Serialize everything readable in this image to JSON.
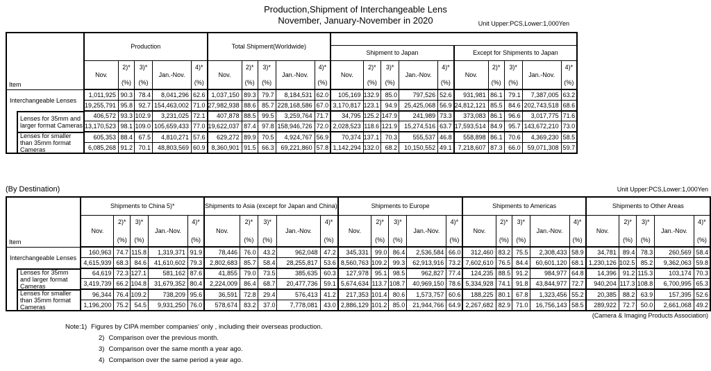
{
  "title": {
    "line1": "Production,Shipment of Interchangeable Lens",
    "line2": "November, January-November in 2020"
  },
  "unit_note": "Unit Upper:PCS,Lower:1,000Yen",
  "item_header": "Item",
  "col_headers": {
    "nov": "Nov.",
    "c2": "2)*",
    "c3": "3)*",
    "jan_nov": "Jan.-Nov.",
    "c4": "4)*",
    "pct": "(%)"
  },
  "table1": {
    "groups": [
      "Production",
      "Total Shipment(Worldwide)",
      "Shipment to Japan",
      "Except for Shipments to Japan"
    ],
    "rows": [
      {
        "label": "Interchangeable Lenses",
        "indent": false,
        "pcs": [
          "1,011,925",
          "90.3",
          "78.4",
          "8,041,296",
          "62.6",
          "1,037,150",
          "89.3",
          "79.7",
          "8,184,531",
          "62.0",
          "105,169",
          "132.9",
          "85.0",
          "797,526",
          "52.6",
          "931,981",
          "86.1",
          "79.1",
          "7,387,005",
          "63.2"
        ],
        "yen": [
          "19,255,791",
          "95.8",
          "92.7",
          "154,463,002",
          "71.0",
          "27,982,938",
          "88.6",
          "85.7",
          "228,168,586",
          "67.0",
          "3,170,817",
          "123.1",
          "94.9",
          "25,425,068",
          "56.9",
          "24,812,121",
          "85.5",
          "84.6",
          "202,743,518",
          "68.6"
        ]
      },
      {
        "label": "Lenses for 35mm and larger format Cameras",
        "indent": true,
        "pcs": [
          "406,572",
          "93.3",
          "102.9",
          "3,231,025",
          "72.1",
          "407,878",
          "88.5",
          "99.5",
          "3,259,764",
          "71.7",
          "34,795",
          "125.2",
          "147.9",
          "241,989",
          "73.3",
          "373,083",
          "86.1",
          "96.6",
          "3,017,775",
          "71.6"
        ],
        "yen": [
          "13,170,523",
          "98.1",
          "109.0",
          "105,659,433",
          "77.0",
          "19,622,037",
          "87.4",
          "97.8",
          "158,946,726",
          "72.0",
          "2,028,523",
          "118.6",
          "121.9",
          "15,274,516",
          "63.7",
          "17,593,514",
          "84.9",
          "95.7",
          "143,672,210",
          "73.0"
        ]
      },
      {
        "label": "Lenses for smaller than 35mm format Cameras",
        "indent": true,
        "pcs": [
          "605,353",
          "88.4",
          "67.5",
          "4,810,271",
          "57.6",
          "629,272",
          "89.9",
          "70.5",
          "4,924,767",
          "56.9",
          "70,374",
          "137.1",
          "70.3",
          "555,537",
          "46.8",
          "558,898",
          "86.1",
          "70.6",
          "4,369,230",
          "58.5"
        ],
        "yen": [
          "6,085,268",
          "91.2",
          "70.1",
          "48,803,569",
          "60.9",
          "8,360,901",
          "91.5",
          "66.3",
          "69,221,860",
          "57.8",
          "1,142,294",
          "132.0",
          "68.2",
          "10,150,552",
          "49.1",
          "7,218,607",
          "87.3",
          "66.0",
          "59,071,308",
          "59.7"
        ]
      }
    ]
  },
  "table2": {
    "section_label": "(By Destination)",
    "groups": [
      "Shipments to China  5)*",
      "Shipments to Asia (except for Japan and China)",
      "Shipments to Europe",
      "Shipments to Americas",
      "Shipments to Other Areas"
    ],
    "rows": [
      {
        "label": "Interchangeable Lenses",
        "indent": false,
        "pcs": [
          "160,963",
          "74.7",
          "115.8",
          "1,319,371",
          "91.9",
          "78,446",
          "76.0",
          "43.2",
          "962,048",
          "47.2",
          "345,331",
          "99.0",
          "86.4",
          "2,536,584",
          "66.0",
          "312,460",
          "83.2",
          "75.5",
          "2,308,433",
          "58.9",
          "34,781",
          "89.4",
          "78.3",
          "260,569",
          "58.4"
        ],
        "yen": [
          "4,615,939",
          "68.3",
          "84.6",
          "41,610,602",
          "79.3",
          "2,802,683",
          "85.7",
          "58.4",
          "28,255,817",
          "53.6",
          "8,560,763",
          "109.2",
          "99.3",
          "62,913,916",
          "73.2",
          "7,602,610",
          "76.5",
          "84.4",
          "60,601,120",
          "68.1",
          "1,230,126",
          "102.5",
          "85.2",
          "9,362,063",
          "59.8"
        ]
      },
      {
        "label": "Lenses for 35mm and larger format Cameras",
        "indent": true,
        "pcs": [
          "64,619",
          "72.3",
          "127.1",
          "581,162",
          "87.6",
          "41,855",
          "79.0",
          "73.5",
          "385,635",
          "60.3",
          "127,978",
          "95.1",
          "98.5",
          "962,827",
          "77.4",
          "124,235",
          "88.5",
          "91.2",
          "984,977",
          "64.8",
          "14,396",
          "91.2",
          "115.3",
          "103,174",
          "70.3"
        ],
        "yen": [
          "3,419,739",
          "66.2",
          "104.8",
          "31,679,352",
          "80.4",
          "2,224,009",
          "86.4",
          "68.7",
          "20,477,736",
          "59.1",
          "5,674,634",
          "113.7",
          "108.7",
          "40,969,150",
          "78.6",
          "5,334,928",
          "74.1",
          "91.8",
          "43,844,977",
          "72.7",
          "940,204",
          "117.3",
          "108.8",
          "6,700,995",
          "65.3"
        ]
      },
      {
        "label": "Lenses for smaller than 35mm format Cameras",
        "indent": true,
        "pcs": [
          "96,344",
          "76.4",
          "109.2",
          "738,209",
          "95.6",
          "36,591",
          "72.8",
          "29.4",
          "576,413",
          "41.2",
          "217,353",
          "101.4",
          "80.6",
          "1,573,757",
          "60.6",
          "188,225",
          "80.1",
          "67.8",
          "1,323,456",
          "55.2",
          "20,385",
          "88.2",
          "63.9",
          "157,395",
          "52.6"
        ],
        "yen": [
          "1,196,200",
          "75.2",
          "54.5",
          "9,931,250",
          "76.0",
          "578,674",
          "83.2",
          "37.0",
          "7,778,081",
          "43.0",
          "2,886,129",
          "101.2",
          "85.0",
          "21,944,766",
          "64.9",
          "2,267,682",
          "82.9",
          "71.0",
          "16,756,143",
          "58.5",
          "289,922",
          "72.7",
          "50.0",
          "2,661,068",
          "49.2"
        ]
      }
    ]
  },
  "credit": "(Camera & Imaging Products Association)",
  "notes": [
    {
      "prefix": "Note:1)",
      "text": "Figures by CIPA member companies' only , including their overseas production."
    },
    {
      "prefix": "2)",
      "text": "Comparison over the previous month."
    },
    {
      "prefix": "3)",
      "text": "Comparison over the same month a year ago."
    },
    {
      "prefix": "4)",
      "text": "Comparison over the same period a year ago."
    }
  ]
}
